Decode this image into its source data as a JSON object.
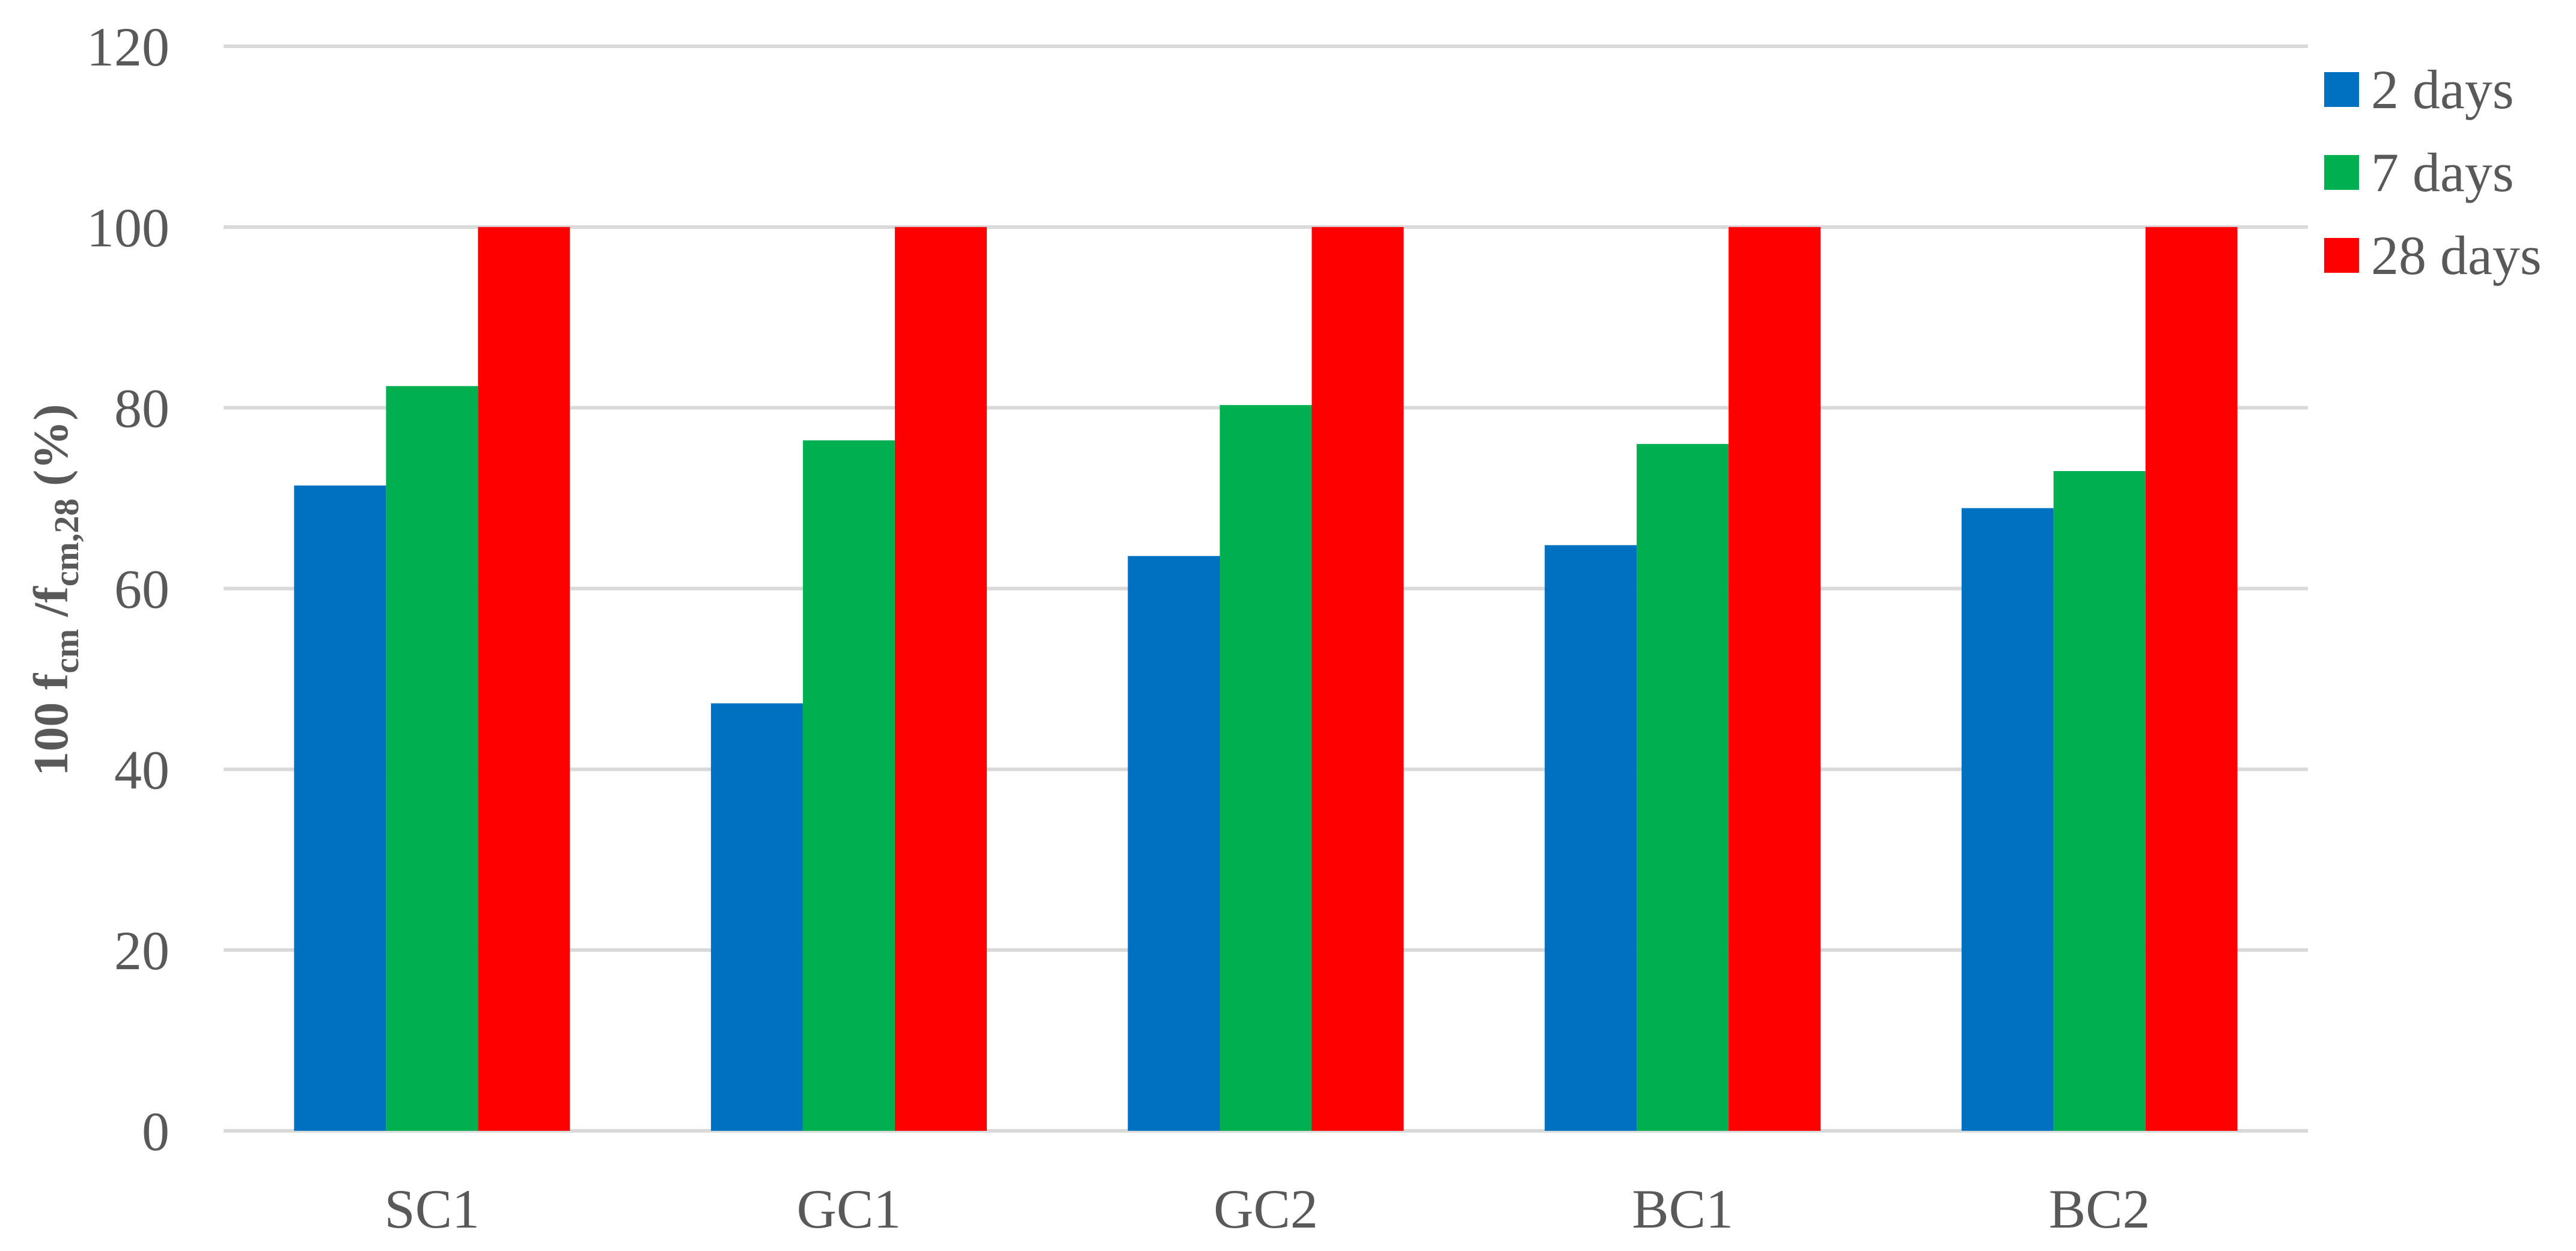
{
  "chart_data": {
    "type": "bar",
    "categories": [
      "SC1",
      "GC1",
      "GC2",
      "BC1",
      "BC2"
    ],
    "series": [
      {
        "name": "2 days",
        "color": "#0070c0",
        "values": [
          71.4,
          47.3,
          63.6,
          64.8,
          68.9
        ]
      },
      {
        "name": "7 days",
        "color": "#00b050",
        "values": [
          82.4,
          76.4,
          80.3,
          76.0,
          73.0
        ]
      },
      {
        "name": "28 days",
        "color": "#ff0000",
        "values": [
          100,
          100,
          100,
          100,
          100
        ]
      }
    ],
    "title": "",
    "xlabel": "",
    "ylabel": {
      "prefix": "100 f",
      "sub1": "cm",
      "middle": " /f",
      "sub2": "cm,28",
      "suffix": " (%)"
    },
    "ylim": [
      0,
      120
    ],
    "yticks": [
      "0",
      "20",
      "40",
      "60",
      "80",
      "100",
      "120"
    ],
    "grid": true,
    "legend_position": "top-right"
  }
}
